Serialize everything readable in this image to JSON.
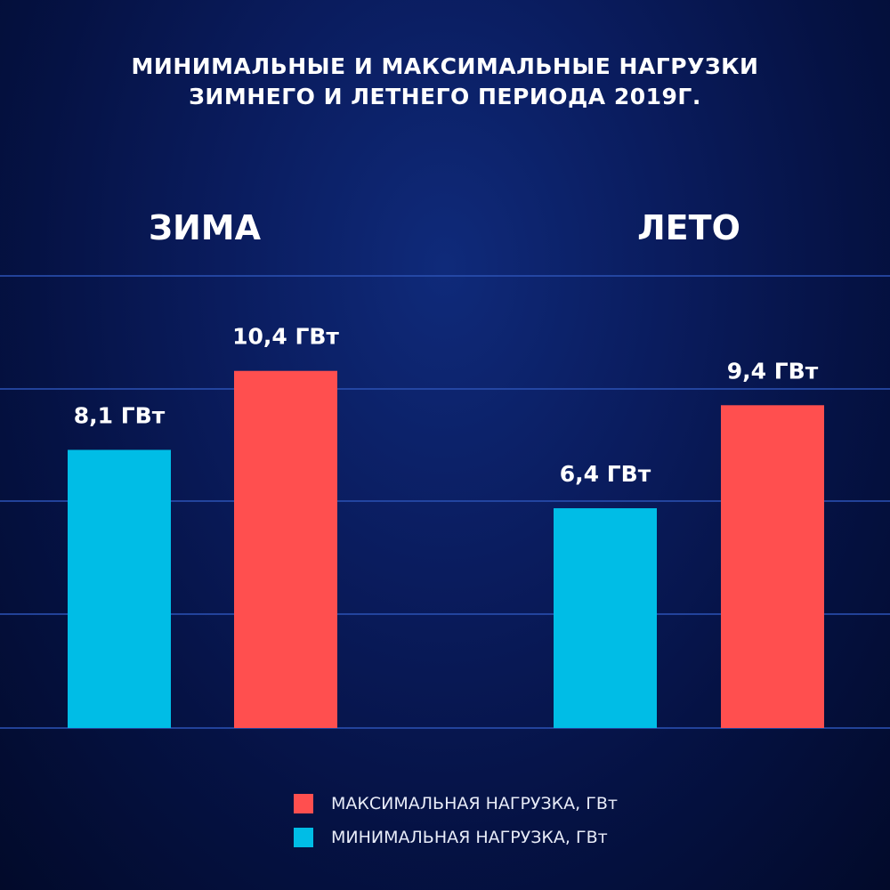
{
  "chart_data": {
    "type": "bar",
    "title": "МИНИМАЛЬНЫЕ И МАКСИМАЛЬНЫЕ НАГРУЗКИ ЗИМНЕГО И ЛЕТНЕГО ПЕРИОДА 2019Г.",
    "title_lines": [
      "МИНИМАЛЬНЫЕ И МАКСИМАЛЬНЫЕ НАГРУЗКИ",
      "ЗИМНЕГО И ЛЕТНЕГО ПЕРИОДА 2019Г."
    ],
    "categories": [
      "ЗИМА",
      "ЛЕТО"
    ],
    "series": [
      {
        "name": "МИНИМАЛЬНАЯ НАГРУЗКА, ГВт",
        "values": [
          8.1,
          6.4
        ],
        "labels": [
          "8,1 ГВт",
          "6,4 ГВт"
        ],
        "color": "#00bde6"
      },
      {
        "name": "МАКСИМАЛЬНАЯ НАГРУЗКА, ГВт",
        "values": [
          10.4,
          9.4
        ],
        "labels": [
          "10,4 ГВт",
          "9,4 ГВт"
        ],
        "color": "#ff4f4f"
      }
    ],
    "legend_order": [
      "МАКСИМАЛЬНАЯ НАГРУЗКА, ГВт",
      "МИНИМАЛЬНАЯ НАГРУЗКА, ГВт"
    ],
    "legend_position": "bottom-center",
    "grid": true,
    "ylim": [
      0,
      21.2
    ]
  }
}
